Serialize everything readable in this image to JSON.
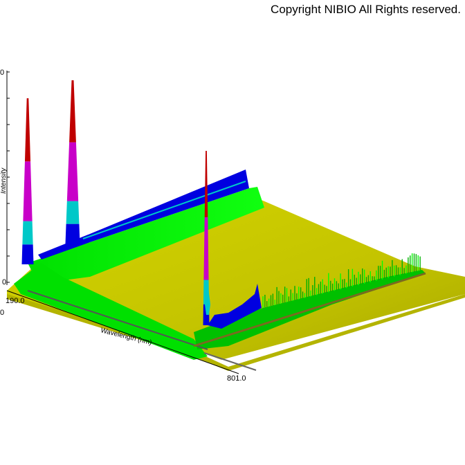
{
  "copyright": "Copyright NIBIO All Rights reserved.",
  "colors": {
    "surface": "#c9c900",
    "surface_light": "#d8d800",
    "band_green": "#00ff00",
    "band_green_dark": "#00b000",
    "band_blue": "#0000e0",
    "band_cyan": "#00c8c8",
    "band_magenta": "#c800c8",
    "band_red": "#c00000"
  },
  "chart_data": {
    "type": "area",
    "style": "3d-waterfall-surface",
    "xlabel": "Wavelength (nm)",
    "ylabel": "Intensity",
    "x_range": [
      190.0,
      801.0
    ],
    "x_tick_labels": [
      "190.0",
      "801.0"
    ],
    "y_tick_labels_visible": [
      "0",
      "0"
    ],
    "grid": false,
    "legend": "none",
    "series": [
      {
        "x": [
          190,
          200,
          210,
          225,
          240,
          260,
          280,
          300,
          340,
          380,
          420,
          460,
          500,
          540,
          560,
          580,
          600,
          640,
          680,
          720,
          760,
          801
        ],
        "values": [
          3,
          14,
          56,
          9,
          6,
          18,
          98,
          12,
          8,
          7,
          6,
          5,
          4,
          4,
          6,
          70,
          10,
          7,
          4,
          2,
          1,
          1
        ]
      },
      {
        "x": [
          190,
          210,
          260,
          280,
          340,
          420,
          500,
          560,
          580,
          600,
          700,
          801
        ],
        "values": [
          2,
          10,
          6,
          15,
          18,
          22,
          26,
          30,
          32,
          2,
          1,
          1
        ]
      }
    ]
  }
}
